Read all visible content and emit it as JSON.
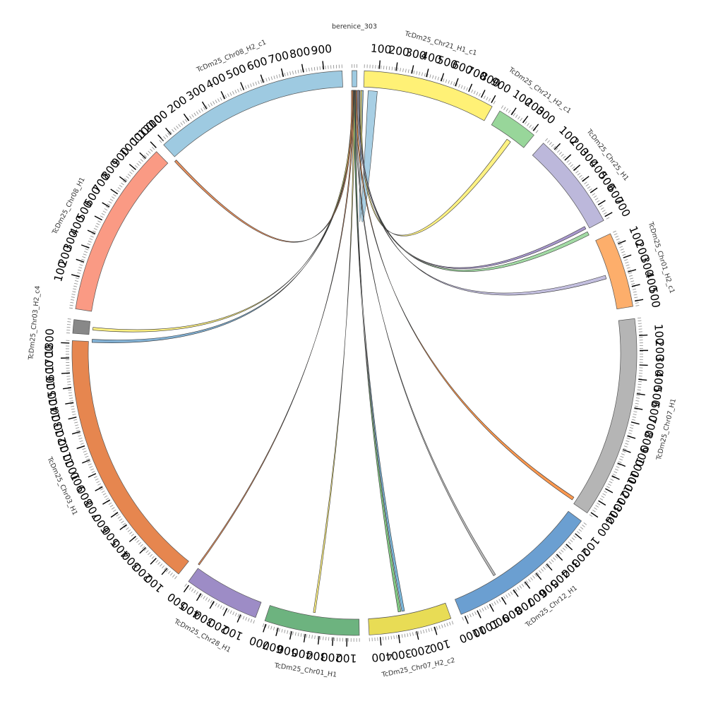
{
  "diagram": {
    "type": "circos",
    "segments": [
      {
        "id": "berenice_303",
        "label": "berenice_303",
        "color": "#9ecae1",
        "major_ticks": []
      },
      {
        "id": "chr21_h1_c1",
        "label": "TcDm25_Chr21_H1_c1",
        "color": "#fff176",
        "major_ticks": [
          "100",
          "200",
          "300",
          "400",
          "500",
          "600",
          "700",
          "800",
          "900"
        ]
      },
      {
        "id": "chr21_h2_c1",
        "label": "TcDm25_Chr21_H2_c1",
        "color": "#98d69a",
        "major_ticks": [
          "100",
          "200",
          "300"
        ]
      },
      {
        "id": "chr25_h1",
        "label": "TcDm25_Chr25_H1",
        "color": "#bcb8db",
        "major_ticks": [
          "100",
          "200",
          "300",
          "400",
          "500",
          "600",
          "700"
        ]
      },
      {
        "id": "chr01_h2_c1",
        "label": "TcDm25_Chr01_H2_c1",
        "color": "#fdae6b",
        "major_ticks": [
          "100",
          "200",
          "300",
          "400",
          "500"
        ]
      },
      {
        "id": "chr07_h1",
        "label": "TcDm25_Chr07_H1",
        "color": "#b5b5b5",
        "major_ticks": [
          "100",
          "200",
          "300",
          "400",
          "500",
          "600",
          "700",
          "800",
          "900",
          "1000",
          "1100",
          "1200",
          "1300",
          "1400"
        ]
      },
      {
        "id": "chr12_h1",
        "label": "TcDm25_Chr12_H1",
        "color": "#6b9fd1",
        "major_ticks": [
          "100",
          "200",
          "300",
          "400",
          "500",
          "600",
          "700",
          "800",
          "900",
          "1000",
          "1100"
        ]
      },
      {
        "id": "chr07_h2_c2",
        "label": "TcDm25_Chr07_H2_c2",
        "color": "#e8dc55",
        "major_ticks": [
          "100",
          "200",
          "300",
          "400"
        ]
      },
      {
        "id": "chr01_h1",
        "label": "TcDm25_Chr01_H1",
        "color": "#6db37f",
        "major_ticks": [
          "100",
          "200",
          "300",
          "400",
          "500",
          "600",
          "700"
        ]
      },
      {
        "id": "chr28_h1",
        "label": "TcDm25_Chr28_H1",
        "color": "#9d8cc6",
        "major_ticks": [
          "100",
          "200",
          "300",
          "400",
          "500"
        ]
      },
      {
        "id": "chr03_h1",
        "label": "TcDm25_Chr03_H1",
        "color": "#e6864f",
        "major_ticks": [
          "100",
          "200",
          "300",
          "400",
          "500",
          "600",
          "700",
          "800",
          "900",
          "1000",
          "1100",
          "1200",
          "1300",
          "1400",
          "1500",
          "1600",
          "1700",
          "1800"
        ]
      },
      {
        "id": "chr03_h2_c4",
        "label": "TcDm25_Chr03_H2_c4",
        "color": "#888888",
        "major_ticks": []
      },
      {
        "id": "chr08_h1",
        "label": "TcDm25_Chr08_H1",
        "color": "#fa9a84",
        "major_ticks": [
          "100",
          "200",
          "300",
          "400",
          "500",
          "600",
          "700",
          "800",
          "900",
          "1000",
          "1100",
          "1200"
        ]
      },
      {
        "id": "chr08_h2_c1",
        "label": "TcDm25_Chr08_H2_c1",
        "color": "#9ecae1",
        "major_ticks": [
          "100",
          "200",
          "300",
          "400",
          "500",
          "600",
          "700",
          "800",
          "900"
        ]
      }
    ],
    "links": [
      {
        "target": "chr21_h1_c1",
        "color": "#9ecae1"
      },
      {
        "target": "chr21_h2_c1",
        "color": "#fff176"
      },
      {
        "target": "chr25_h1",
        "color": "#9d8cc6"
      },
      {
        "target": "chr25_h1",
        "color": "#98d69a"
      },
      {
        "target": "chr01_h2_c1",
        "color": "#bcb8db"
      },
      {
        "target": "chr07_h1",
        "color": "#fd8d3c"
      },
      {
        "target": "chr12_h1",
        "color": "#b5b5b5"
      },
      {
        "target": "chr07_h2_c2",
        "color": "#6baed6"
      },
      {
        "target": "chr07_h2_c2",
        "color": "#74c476"
      },
      {
        "target": "chr01_h1",
        "color": "#fff176"
      },
      {
        "target": "chr28_h1",
        "color": "#e6864f"
      },
      {
        "target": "chr03_h1",
        "color": "#74a9cf"
      },
      {
        "target": "chr03_h2_c4",
        "color": "#fff176"
      },
      {
        "target": "chr08_h2_c1",
        "color": "#e6864f"
      }
    ]
  }
}
